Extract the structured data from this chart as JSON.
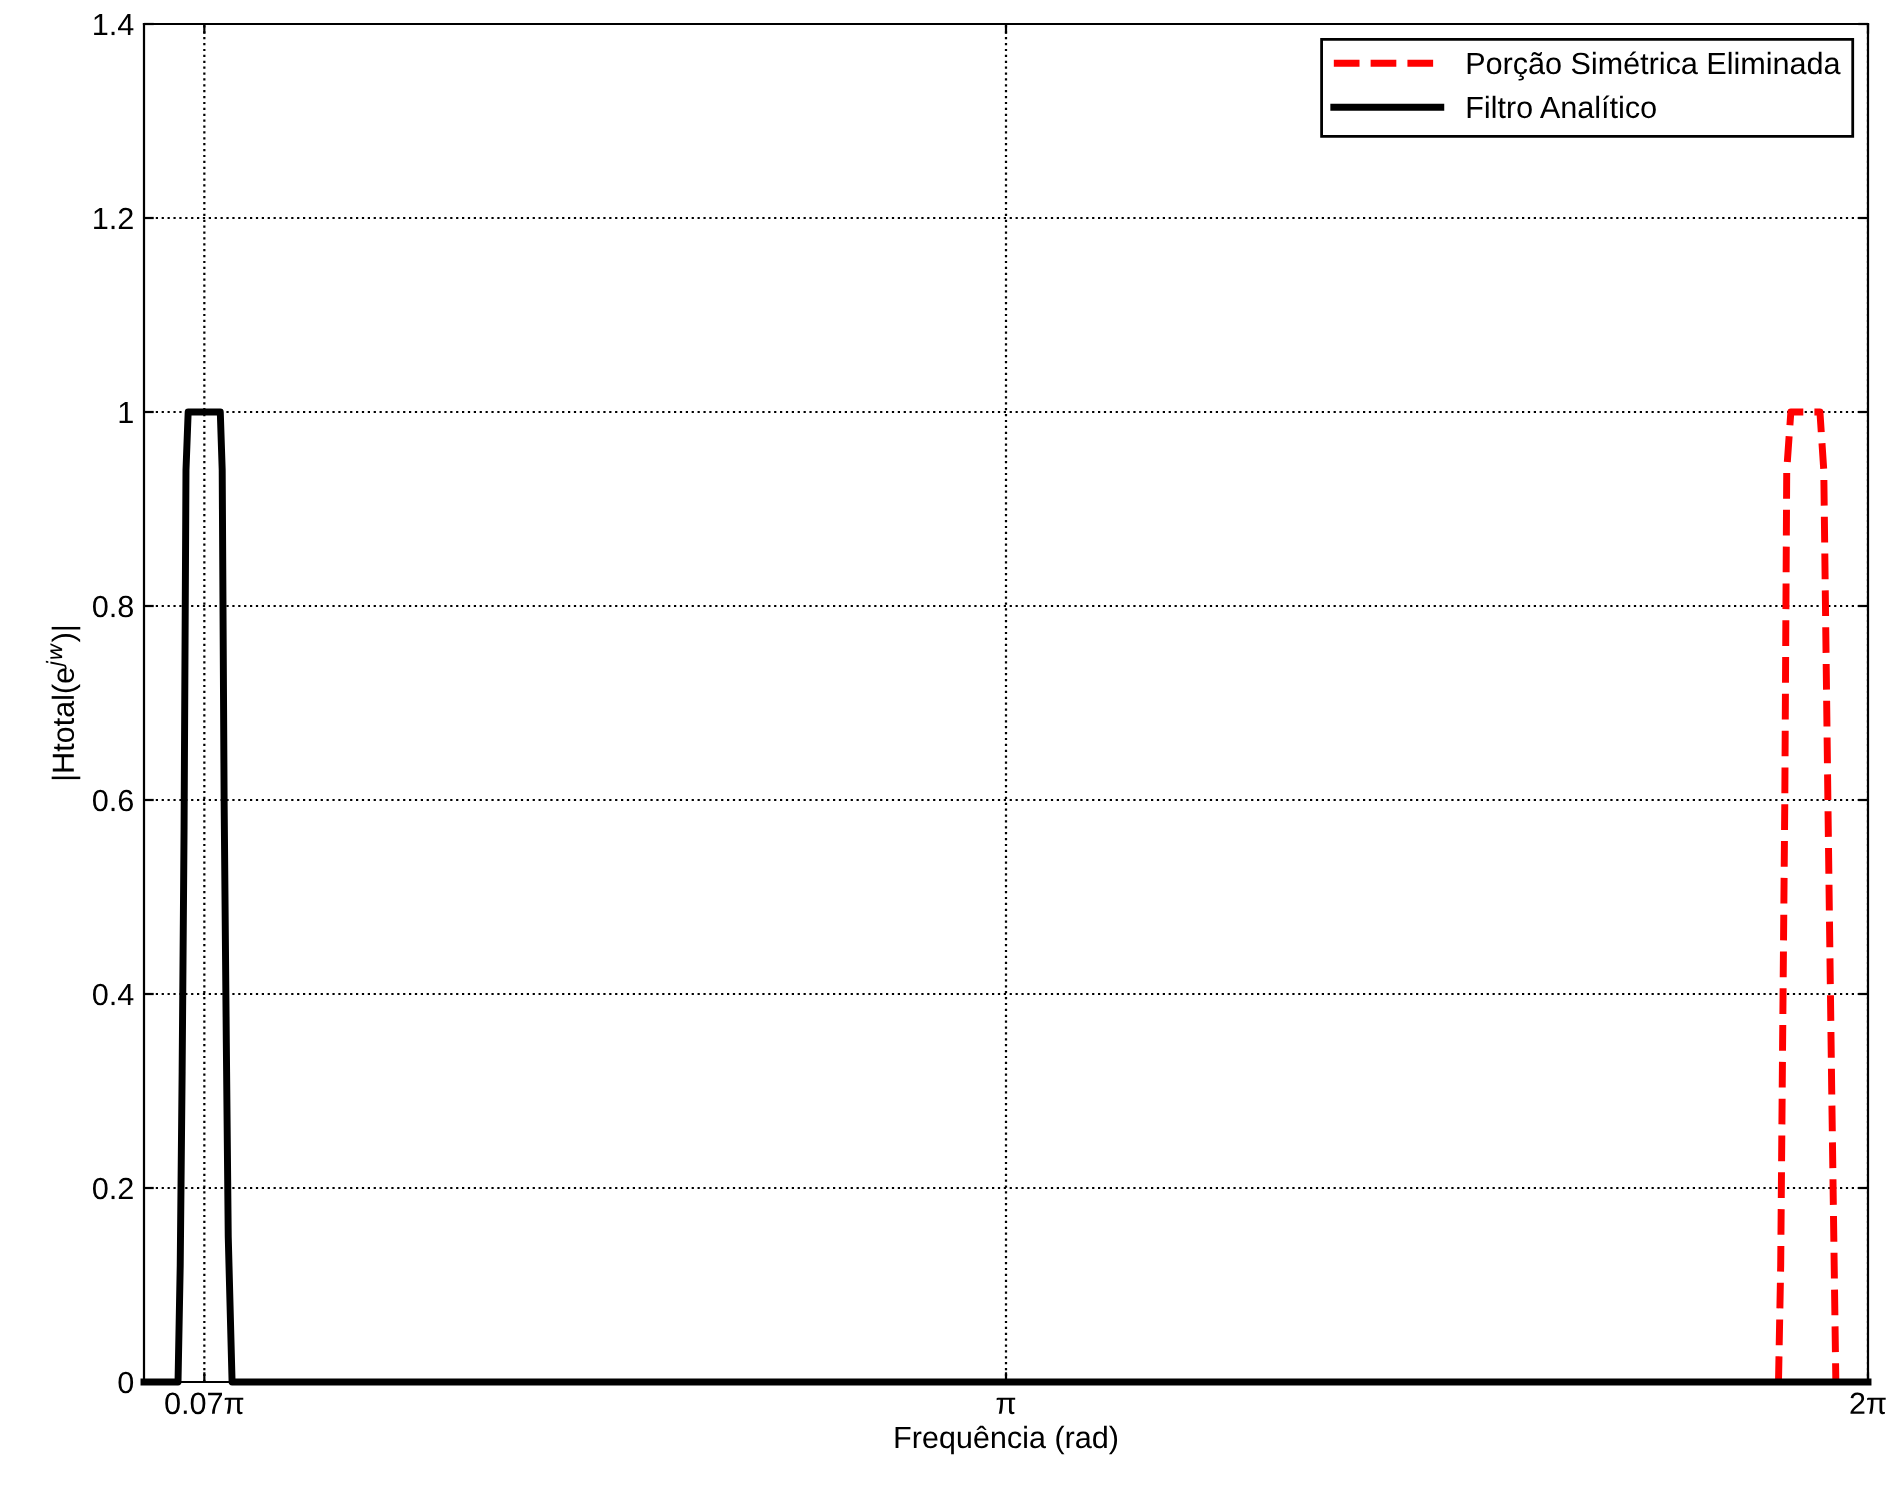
{
  "chart_data": {
    "type": "line",
    "xlabel": "Frequência (rad)",
    "ylabel": "|Htotal(e$^{jw}$)|",
    "series": [
      {
        "name": "Porção Simétrica Eliminada",
        "color": "#ff0000",
        "line_style": "dashed",
        "x": [
          5.957,
          5.965,
          5.972,
          5.98,
          5.987,
          6.002,
          6.108,
          6.122,
          6.137,
          6.151,
          6.166
        ],
        "values": [
          0,
          0.12,
          0.35,
          0.6,
          0.94,
          1.0,
          1.0,
          0.94,
          0.6,
          0.3,
          0
        ]
      },
      {
        "name": "Filtro Analítico",
        "color": "#000000",
        "line_style": "solid",
        "x": [
          0,
          0.124,
          0.132,
          0.139,
          0.146,
          0.153,
          0.161,
          0.278,
          0.285,
          0.292,
          0.3,
          0.307,
          0.321,
          6.2832
        ],
        "values": [
          0,
          0,
          0.12,
          0.32,
          0.57,
          0.94,
          1.0,
          1.0,
          0.94,
          0.6,
          0.35,
          0.15,
          0,
          0
        ]
      }
    ],
    "xlim": [
      0,
      6.2832
    ],
    "xticks": [
      {
        "value": 0.2199,
        "label": "0.07π"
      },
      {
        "value": 3.1416,
        "label": "π"
      },
      {
        "value": 6.2832,
        "label": "2π"
      }
    ],
    "ylim": [
      0,
      1.4
    ],
    "yticks": [
      0,
      0.2,
      0.4,
      0.6,
      0.8,
      1,
      1.2,
      1.4
    ],
    "grid": true,
    "legend": "top right",
    "marker": "none"
  }
}
